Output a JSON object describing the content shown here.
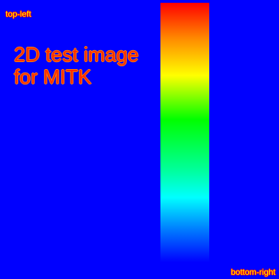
{
  "labels": {
    "top_left": "top-left",
    "bottom_right": "bottom-right"
  },
  "title": {
    "line1": "2D test image",
    "line2": "for MITK"
  },
  "colors": {
    "background": "#0000ff",
    "text_fill": "#ffff00",
    "text_outline": "#ff0000",
    "title_fill": "#ff2a00",
    "gradient_stops": [
      "#ff0000",
      "#ff8c00",
      "#ffff00",
      "#00ff00",
      "#00ffa0",
      "#00ffff",
      "#0080ff",
      "#0000ff"
    ]
  }
}
